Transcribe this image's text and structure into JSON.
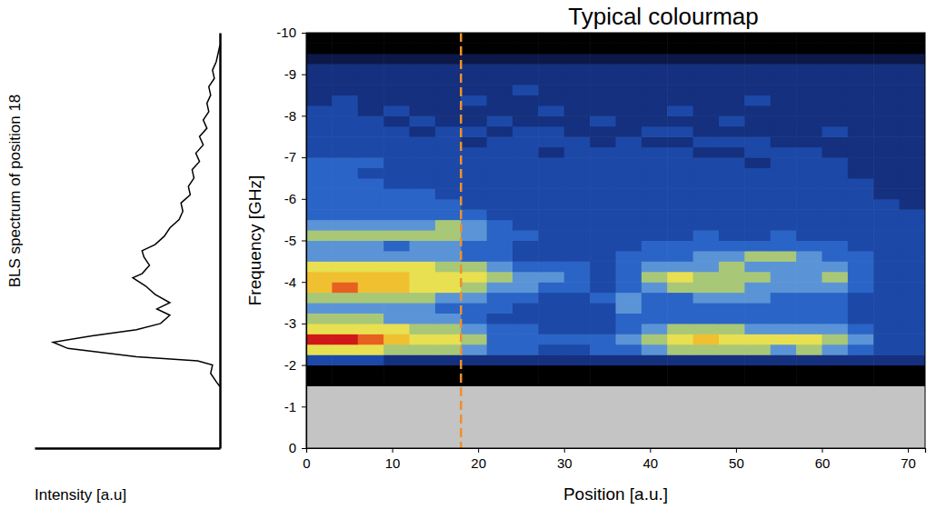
{
  "chart_data": [
    {
      "type": "heatmap",
      "title": "Typical colourmap",
      "x_label": "Position [a.u.]",
      "y_label": "Frequency [GHz]",
      "xlim": [
        0,
        72
      ],
      "ylim": [
        0,
        -10
      ],
      "xticks": [
        0,
        10,
        20,
        30,
        40,
        50,
        60,
        70
      ],
      "yticks": [
        0,
        -1,
        -2,
        -3,
        -4,
        -5,
        -6,
        -7,
        -8,
        -9,
        -10
      ],
      "zlim": [
        0,
        10
      ],
      "vlines": [
        18
      ],
      "x_edges": [
        0,
        3,
        6,
        9,
        12,
        15,
        18,
        21,
        24,
        27,
        30,
        33,
        36,
        39,
        42,
        45,
        48,
        51,
        54,
        57,
        60,
        63,
        66,
        69,
        72
      ],
      "y_edges": [
        -1.5,
        -1.75,
        -2,
        -2.25,
        -2.5,
        -2.75,
        -3,
        -3.25,
        -3.5,
        -3.75,
        -4,
        -4.25,
        -4.5,
        -4.75,
        -5,
        -5.25,
        -5.5,
        -5.75,
        -6,
        -6.25,
        -6.5,
        -6.75,
        -7,
        -7.25,
        -7.5,
        -7.75,
        -8,
        -8.25,
        -8.5,
        -8.75,
        -9,
        -9.25,
        -9.5,
        -9.75,
        -10
      ],
      "z": [
        [
          0,
          0,
          0,
          0,
          0,
          0,
          0,
          0,
          0,
          0,
          0,
          0,
          0,
          0,
          0,
          0,
          0,
          0,
          0,
          0,
          0,
          0,
          0,
          0
        ],
        [
          0,
          0,
          0,
          0,
          0,
          0,
          0,
          0,
          0,
          0,
          0,
          0,
          0,
          0,
          0,
          0,
          0,
          0,
          0,
          0,
          0,
          0,
          0,
          0
        ],
        [
          3,
          3,
          3,
          2,
          2,
          2,
          2,
          2,
          2,
          2,
          2,
          2,
          2,
          2,
          2,
          2,
          2,
          2,
          2,
          2,
          2,
          2,
          2,
          2
        ],
        [
          7,
          7,
          7,
          6,
          6,
          6,
          5,
          4,
          4,
          3,
          3,
          4,
          4,
          5,
          6,
          6,
          6,
          6,
          5,
          6,
          5,
          4,
          3,
          3
        ],
        [
          10,
          10,
          9,
          8,
          7,
          7,
          6,
          4,
          4,
          4,
          4,
          4,
          5,
          6,
          7,
          8,
          7,
          7,
          7,
          7,
          6,
          5,
          3,
          3
        ],
        [
          7,
          7,
          7,
          7,
          6,
          6,
          5,
          4,
          4,
          3,
          3,
          3,
          4,
          5,
          6,
          6,
          6,
          5,
          5,
          5,
          5,
          4,
          3,
          3
        ],
        [
          6,
          6,
          6,
          5,
          5,
          5,
          4,
          3,
          3,
          3,
          3,
          3,
          4,
          4,
          4,
          4,
          4,
          4,
          4,
          4,
          4,
          3,
          3,
          3
        ],
        [
          5,
          5,
          5,
          5,
          5,
          4,
          4,
          4,
          3,
          3,
          3,
          3,
          5,
          4,
          4,
          4,
          4,
          4,
          4,
          4,
          4,
          3,
          3,
          3
        ],
        [
          6,
          6,
          6,
          6,
          6,
          5,
          5,
          4,
          4,
          3,
          3,
          4,
          5,
          4,
          4,
          5,
          5,
          5,
          4,
          4,
          4,
          3,
          3,
          3
        ],
        [
          8,
          9,
          8,
          8,
          7,
          7,
          6,
          5,
          5,
          4,
          4,
          3,
          4,
          5,
          6,
          6,
          6,
          5,
          5,
          5,
          5,
          4,
          3,
          3
        ],
        [
          8,
          8,
          8,
          8,
          7,
          7,
          7,
          6,
          5,
          5,
          4,
          3,
          4,
          6,
          7,
          6,
          6,
          6,
          5,
          5,
          6,
          4,
          3,
          3
        ],
        [
          7,
          7,
          7,
          7,
          7,
          6,
          6,
          5,
          4,
          4,
          4,
          3,
          4,
          5,
          5,
          5,
          6,
          5,
          5,
          5,
          5,
          4,
          3,
          3
        ],
        [
          5,
          5,
          5,
          5,
          5,
          5,
          4,
          4,
          3,
          3,
          3,
          3,
          4,
          4,
          4,
          5,
          5,
          6,
          6,
          5,
          4,
          4,
          3,
          3
        ],
        [
          5,
          5,
          5,
          4,
          5,
          5,
          4,
          4,
          3,
          3,
          3,
          3,
          3,
          4,
          4,
          4,
          4,
          4,
          4,
          4,
          4,
          3,
          3,
          3
        ],
        [
          6,
          6,
          6,
          6,
          6,
          6,
          5,
          4,
          4,
          3,
          3,
          3,
          3,
          3,
          3,
          4,
          3,
          3,
          4,
          3,
          3,
          3,
          3,
          3
        ],
        [
          5,
          5,
          5,
          5,
          5,
          6,
          5,
          4,
          3,
          3,
          3,
          3,
          3,
          3,
          3,
          3,
          3,
          3,
          3,
          3,
          3,
          3,
          3,
          3
        ],
        [
          4,
          4,
          4,
          4,
          4,
          4,
          4,
          3,
          3,
          3,
          3,
          3,
          3,
          3,
          3,
          3,
          3,
          3,
          3,
          3,
          3,
          3,
          3,
          3
        ],
        [
          4,
          4,
          4,
          4,
          4,
          4,
          3,
          3,
          3,
          3,
          3,
          3,
          3,
          3,
          3,
          3,
          3,
          3,
          3,
          3,
          3,
          3,
          3,
          2
        ],
        [
          4,
          4,
          4,
          4,
          4,
          3,
          3,
          3,
          3,
          3,
          3,
          3,
          3,
          3,
          3,
          3,
          3,
          3,
          3,
          3,
          3,
          3,
          2,
          2
        ],
        [
          4,
          4,
          4,
          3,
          3,
          3,
          3,
          3,
          3,
          3,
          3,
          3,
          3,
          3,
          3,
          3,
          3,
          3,
          3,
          3,
          3,
          3,
          2,
          2
        ],
        [
          4,
          4,
          3,
          3,
          3,
          3,
          3,
          3,
          3,
          3,
          3,
          3,
          3,
          3,
          3,
          3,
          3,
          3,
          3,
          3,
          3,
          2,
          2,
          2
        ],
        [
          4,
          4,
          4,
          3,
          3,
          3,
          3,
          3,
          3,
          3,
          3,
          3,
          3,
          3,
          3,
          3,
          3,
          2,
          3,
          3,
          3,
          2,
          2,
          2
        ],
        [
          3,
          3,
          3,
          3,
          3,
          3,
          3,
          3,
          3,
          2,
          3,
          3,
          3,
          3,
          3,
          2,
          2,
          3,
          3,
          3,
          2,
          2,
          2,
          2
        ],
        [
          3,
          3,
          3,
          3,
          3,
          3,
          2,
          3,
          3,
          3,
          3,
          2,
          3,
          2,
          2,
          3,
          3,
          3,
          2,
          2,
          2,
          2,
          2,
          2
        ],
        [
          3,
          3,
          3,
          3,
          2,
          3,
          3,
          2,
          3,
          3,
          2,
          2,
          2,
          3,
          3,
          2,
          2,
          2,
          2,
          2,
          3,
          2,
          2,
          2
        ],
        [
          3,
          3,
          3,
          2,
          3,
          2,
          2,
          3,
          2,
          2,
          2,
          3,
          2,
          2,
          2,
          2,
          3,
          2,
          2,
          2,
          2,
          2,
          2,
          2
        ],
        [
          3,
          3,
          2,
          3,
          2,
          2,
          2,
          2,
          2,
          3,
          2,
          2,
          2,
          2,
          3,
          2,
          2,
          2,
          2,
          2,
          2,
          2,
          2,
          2
        ],
        [
          2,
          3,
          2,
          2,
          2,
          2,
          3,
          2,
          2,
          2,
          2,
          2,
          2,
          2,
          2,
          2,
          2,
          3,
          2,
          2,
          2,
          2,
          2,
          2
        ],
        [
          2,
          2,
          2,
          2,
          2,
          2,
          2,
          2,
          3,
          2,
          2,
          2,
          2,
          2,
          2,
          2,
          2,
          2,
          2,
          2,
          2,
          2,
          2,
          2
        ],
        [
          2,
          2,
          2,
          2,
          2,
          2,
          2,
          2,
          2,
          2,
          2,
          2,
          2,
          2,
          2,
          2,
          2,
          2,
          2,
          2,
          2,
          2,
          2,
          2
        ],
        [
          2,
          2,
          2,
          2,
          2,
          2,
          2,
          2,
          2,
          2,
          2,
          2,
          2,
          2,
          2,
          2,
          2,
          2,
          2,
          2,
          2,
          2,
          2,
          2
        ],
        [
          1,
          1,
          1,
          1,
          1,
          1,
          1,
          1,
          1,
          1,
          1,
          1,
          1,
          1,
          1,
          1,
          1,
          1,
          1,
          1,
          1,
          1,
          1,
          1
        ],
        [
          0,
          0,
          0,
          0,
          0,
          0,
          0,
          0,
          0,
          0,
          0,
          0,
          0,
          0,
          0,
          0,
          0,
          0,
          0,
          0,
          0,
          0,
          0,
          0
        ],
        [
          0,
          0,
          0,
          0,
          0,
          0,
          0,
          0,
          0,
          0,
          0,
          0,
          0,
          0,
          0,
          0,
          0,
          0,
          0,
          0,
          0,
          0,
          0,
          0
        ]
      ]
    },
    {
      "type": "line",
      "orientation": "horizontal",
      "x_label": "Intensity [a.u]",
      "y_label": "BLS spectrum of position 18",
      "tick_labels": false,
      "color": "#000000",
      "xlim": [
        10,
        0
      ],
      "ylim": [
        0,
        -10
      ],
      "y": [
        -1.48,
        -1.6,
        -1.8,
        -2.0,
        -2.1,
        -2.2,
        -2.4,
        -2.55,
        -2.7,
        -2.85,
        -3.0,
        -3.2,
        -3.35,
        -3.5,
        -3.7,
        -3.9,
        -4.1,
        -4.2,
        -4.4,
        -4.6,
        -4.75,
        -4.9,
        -5.1,
        -5.3,
        -5.5,
        -5.7,
        -5.9,
        -6.1,
        -6.3,
        -6.5,
        -6.7,
        -6.9,
        -7.1,
        -7.3,
        -7.5,
        -7.7,
        -7.9,
        -8.1,
        -8.3,
        -8.5,
        -8.7,
        -8.9,
        -9.1,
        -9.3,
        -9.5,
        -9.7
      ],
      "values": [
        0,
        0.2,
        0.5,
        0.4,
        1.2,
        4.5,
        8.2,
        9.0,
        6.9,
        4.5,
        3.2,
        2.7,
        3.4,
        2.7,
        3.5,
        4.0,
        4.7,
        4.2,
        3.8,
        4.1,
        4.2,
        3.5,
        3.0,
        2.7,
        2.2,
        2.0,
        2.1,
        1.6,
        1.7,
        1.4,
        1.5,
        1.1,
        1.3,
        0.9,
        1.1,
        0.7,
        0.9,
        0.6,
        0.7,
        0.5,
        0.6,
        0.3,
        0.4,
        0.2,
        0.1,
        0
      ]
    }
  ]
}
